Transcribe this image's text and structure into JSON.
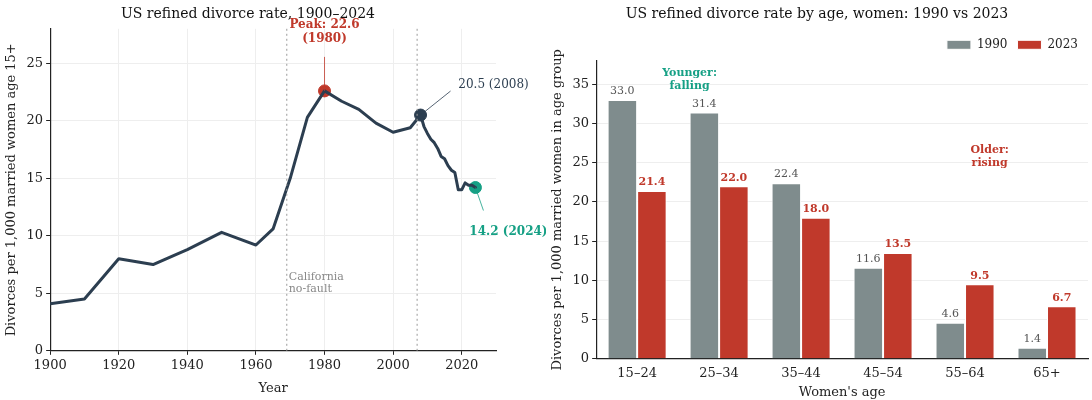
{
  "chart_data": [
    {
      "type": "line",
      "title": "US refined divorce rate, 1900–2024",
      "xlabel": "Year",
      "ylabel": "Divorces per 1,000 married women age 15+",
      "xlim": [
        1900,
        2030
      ],
      "xticks": [
        1900,
        1920,
        1940,
        1960,
        1980,
        2000,
        2020
      ],
      "ylim": [
        0,
        28
      ],
      "yticks": [
        0,
        5,
        10,
        15,
        20,
        25
      ],
      "grid": true,
      "legend": false,
      "series": [
        {
          "color": "#2c3e50",
          "marker": "none",
          "x": [
            1900,
            1910,
            1920,
            1930,
            1940,
            1950,
            1960,
            1965,
            1970,
            1975,
            1980,
            1985,
            1990,
            1995,
            2000,
            2005,
            2008,
            2009,
            2010,
            2011,
            2012,
            2013,
            2014,
            2015,
            2016,
            2017,
            2018,
            2019,
            2020,
            2021,
            2022,
            2023,
            2024
          ],
          "values": [
            4.1,
            4.5,
            8.0,
            7.5,
            8.8,
            10.3,
            9.2,
            10.6,
            15.0,
            20.3,
            22.6,
            21.7,
            21.0,
            19.8,
            19.0,
            19.4,
            20.5,
            19.5,
            18.9,
            18.4,
            18.1,
            17.6,
            16.9,
            16.7,
            16.1,
            15.7,
            15.5,
            14.0,
            14.0,
            14.6,
            14.4,
            14.4,
            14.2
          ]
        },
        {
          "type": "scatter",
          "marker": "circle",
          "x": [
            1980,
            2008,
            2024
          ],
          "values": [
            22.6,
            20.5,
            14.2
          ],
          "colors": [
            "#c0392b",
            "#2c3e50",
            "#16a085"
          ]
        }
      ],
      "ref_lines": [
        {
          "axis": "x",
          "value": 1969,
          "label": "California\nno-fault",
          "color": "#999999",
          "line_style": "dotted"
        },
        {
          "axis": "x",
          "value": 2007,
          "label": null,
          "color": "#999999",
          "line_style": "dotted"
        }
      ],
      "annotations": [
        {
          "text": "Peak: 22.6\n(1980)",
          "x": 1980,
          "y": 22.6
        },
        {
          "text": "20.5 (2008)",
          "x": 2008,
          "y": 20.5
        },
        {
          "text": "14.2 (2024)",
          "x": 2024,
          "y": 14.2
        }
      ]
    },
    {
      "type": "bar",
      "title": "US refined divorce rate by age, women: 1990 vs 2023",
      "xlabel": "Women's age",
      "ylabel": "Divorces per 1,000 married women in age group",
      "categories": [
        "15–24",
        "25–34",
        "35–44",
        "45–54",
        "55–64",
        "65+"
      ],
      "ylim": [
        0,
        38
      ],
      "yticks": [
        0,
        5,
        10,
        15,
        20,
        25,
        30,
        35
      ],
      "grid": "y",
      "legend": "top right",
      "series": [
        {
          "name": "1990",
          "color": "#7f8c8d",
          "values": [
            33.0,
            31.4,
            22.4,
            11.6,
            4.6,
            1.4
          ],
          "value_labels": [
            "33.0",
            "31.4",
            "22.4",
            "11.6",
            "4.6",
            "1.4"
          ]
        },
        {
          "name": "2023",
          "color": "#c0392b",
          "values": [
            21.4,
            22.0,
            18.0,
            13.5,
            9.5,
            6.7
          ],
          "value_labels": [
            "21.4",
            "22.0",
            "18.0",
            "13.5",
            "9.5",
            "6.7"
          ]
        }
      ],
      "annotations": [
        "Younger:\nfalling",
        "Older:\nrising"
      ]
    }
  ]
}
